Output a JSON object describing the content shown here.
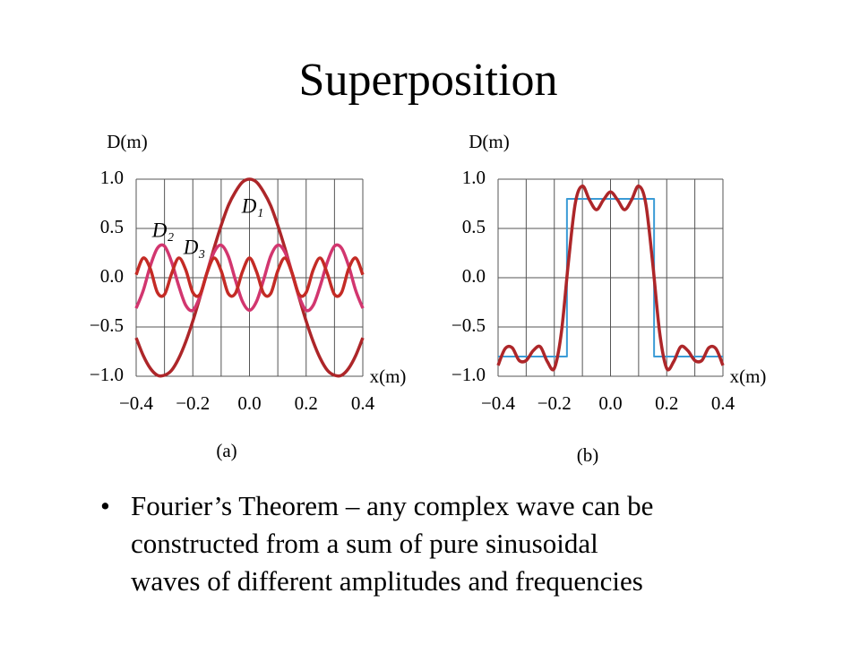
{
  "title": "Superposition",
  "bullet": [
    "Fourier’s Theorem – any complex wave can be",
    "constructed from a sum of pure sinusoidal",
    "waves of different amplitudes and frequencies"
  ],
  "chart_data": [
    {
      "type": "line",
      "caption": "(a)",
      "y_label": "D(m)",
      "x_label": "x(m)",
      "xlim": [
        -0.4,
        0.4
      ],
      "ylim": [
        -1.0,
        1.0
      ],
      "grid": true,
      "xticks": [
        {
          "value": -0.4,
          "label": "−0.4"
        },
        {
          "value": -0.2,
          "label": "−0.2"
        },
        {
          "value": 0,
          "label": "0.0"
        },
        {
          "value": 0.2,
          "label": "0.2"
        },
        {
          "value": 0.4,
          "label": "0.4"
        }
      ],
      "xminor": [
        -0.3,
        -0.1,
        0.1,
        0.3
      ],
      "yticks": [
        {
          "value": 1,
          "label": "1.0"
        },
        {
          "value": 0.5,
          "label": "0.5"
        },
        {
          "value": 0,
          "label": "0.0"
        },
        {
          "value": -0.5,
          "label": "−0.5"
        },
        {
          "value": -1,
          "label": "−1.0"
        }
      ],
      "x": [
        -0.4,
        -0.375,
        -0.35,
        -0.325,
        -0.3,
        -0.275,
        -0.25,
        -0.225,
        -0.2,
        -0.175,
        -0.15,
        -0.125,
        -0.1,
        -0.075,
        -0.05,
        -0.025,
        0,
        0.025,
        0.05,
        0.075,
        0.1,
        0.125,
        0.15,
        0.175,
        0.2,
        0.225,
        0.25,
        0.275,
        0.3,
        0.325,
        0.35,
        0.375,
        0.4
      ],
      "series": [
        {
          "name": "D₁",
          "color": "#ad2629",
          "values": [
            -0.61,
            -0.79,
            -0.92,
            -0.99,
            -0.99,
            -0.94,
            -0.82,
            -0.65,
            -0.44,
            -0.2,
            0.05,
            0.3,
            0.53,
            0.73,
            0.87,
            0.97,
            1,
            0.97,
            0.87,
            0.73,
            0.53,
            0.3,
            0.05,
            -0.2,
            -0.44,
            -0.65,
            -0.82,
            -0.94,
            -0.99,
            -0.99,
            -0.92,
            -0.79,
            -0.61
          ]
        },
        {
          "name": "D₂",
          "color": "#d2366f",
          "values": [
            -0.31,
            -0.13,
            0.12,
            0.3,
            0.32,
            0.16,
            -0.08,
            -0.28,
            -0.33,
            -0.19,
            0.05,
            0.26,
            0.33,
            0.22,
            -0.02,
            -0.24,
            -0.33,
            -0.24,
            -0.02,
            0.22,
            0.33,
            0.26,
            0.05,
            -0.19,
            -0.33,
            -0.28,
            -0.08,
            0.16,
            0.32,
            0.3,
            0.12,
            -0.13,
            -0.31
          ]
        },
        {
          "name": "D₃",
          "color": "#c42b25",
          "values": [
            0.03,
            0.2,
            0.09,
            -0.15,
            -0.17,
            0.04,
            0.2,
            0.08,
            -0.15,
            -0.17,
            0.05,
            0.2,
            0.07,
            -0.16,
            -0.16,
            0.06,
            0.2,
            0.06,
            -0.16,
            -0.16,
            0.07,
            0.2,
            0.05,
            -0.17,
            -0.15,
            0.08,
            0.2,
            0.04,
            -0.17,
            -0.15,
            0.09,
            0.2,
            0.03
          ]
        }
      ]
    },
    {
      "type": "line",
      "caption": "(b)",
      "y_label": "D(m)",
      "x_label": "x(m)",
      "xlim": [
        -0.4,
        0.4
      ],
      "ylim": [
        -1.0,
        1.0
      ],
      "grid": true,
      "xticks": [
        {
          "value": -0.4,
          "label": "−0.4"
        },
        {
          "value": -0.2,
          "label": "−0.2"
        },
        {
          "value": 0,
          "label": "0.0"
        },
        {
          "value": 0.2,
          "label": "0.2"
        },
        {
          "value": 0.4,
          "label": "0.4"
        }
      ],
      "xminor": [
        -0.3,
        -0.1,
        0.1,
        0.3
      ],
      "yticks": [
        {
          "value": 1,
          "label": "1.0"
        },
        {
          "value": 0.5,
          "label": "0.5"
        },
        {
          "value": 0,
          "label": "0.0"
        },
        {
          "value": -0.5,
          "label": "−0.5"
        },
        {
          "value": -1,
          "label": "−1.0"
        }
      ],
      "x": [
        -0.4,
        -0.375,
        -0.35,
        -0.325,
        -0.3,
        -0.275,
        -0.25,
        -0.225,
        -0.2,
        -0.175,
        -0.15,
        -0.125,
        -0.1,
        -0.075,
        -0.05,
        -0.025,
        0,
        0.025,
        0.05,
        0.075,
        0.1,
        0.125,
        0.15,
        0.175,
        0.2,
        0.225,
        0.25,
        0.275,
        0.3,
        0.325,
        0.35,
        0.375,
        0.4
      ],
      "series": [
        {
          "color": "#3b9bd6",
          "x": [
            -0.4,
            -0.155,
            -0.155,
            0.155,
            0.155,
            0.4
          ],
          "values": [
            -0.8,
            -0.8,
            0.8,
            0.8,
            -0.8,
            -0.8
          ]
        },
        {
          "color": "#ad2629",
          "values": [
            -0.89,
            -0.72,
            -0.71,
            -0.84,
            -0.84,
            -0.74,
            -0.7,
            -0.85,
            -0.92,
            -0.56,
            0.15,
            0.76,
            0.93,
            0.79,
            0.69,
            0.79,
            0.87,
            0.79,
            0.69,
            0.79,
            0.93,
            0.76,
            0.15,
            -0.56,
            -0.92,
            -0.85,
            -0.7,
            -0.74,
            -0.84,
            -0.84,
            -0.71,
            -0.72,
            -0.89
          ]
        }
      ]
    }
  ]
}
